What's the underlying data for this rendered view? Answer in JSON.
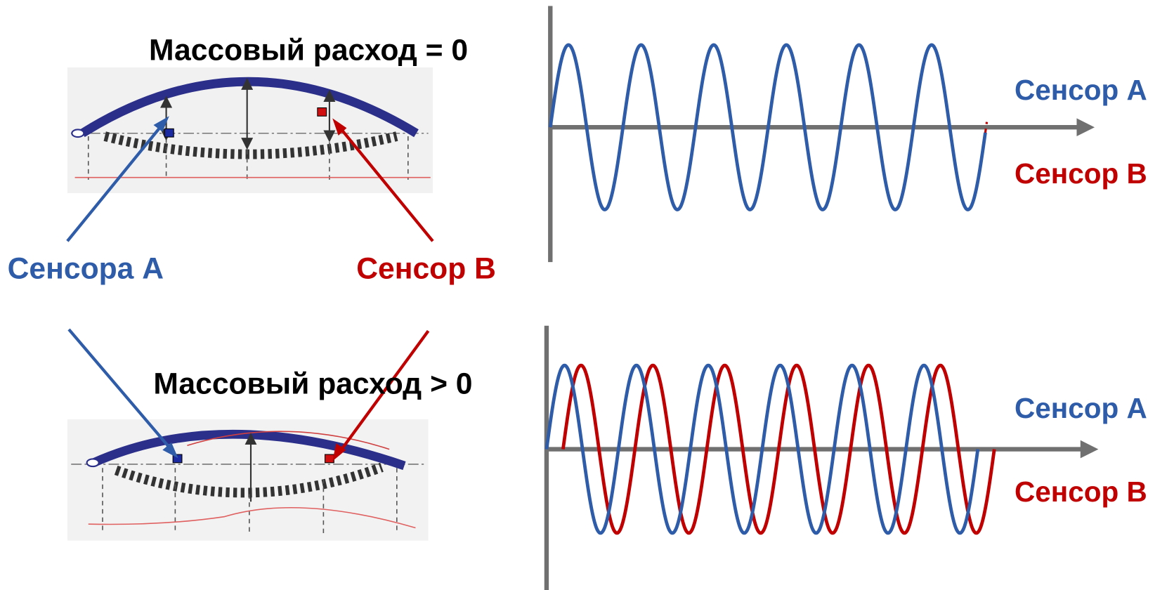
{
  "top": {
    "title": "Массовый расход = 0",
    "graph_labels": [
      "Сенсор A",
      "Сенсор B"
    ]
  },
  "bottom": {
    "title": "Массовый расход > 0",
    "graph_labels": [
      "Сенсор A",
      "Сенсор B"
    ]
  },
  "sensor_labels": [
    "Сенсора A",
    "Сенсор B"
  ]
}
